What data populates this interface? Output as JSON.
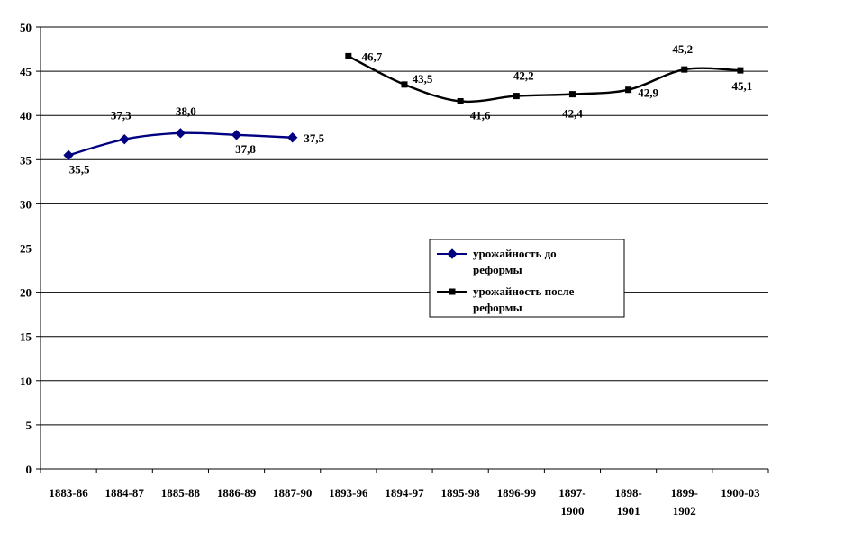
{
  "chart_data": {
    "type": "line",
    "title": "",
    "xlabel": "",
    "ylabel": "",
    "ylim": [
      0,
      50
    ],
    "yticks": [
      0,
      5,
      10,
      15,
      20,
      25,
      30,
      35,
      40,
      45,
      50
    ],
    "grid": true,
    "legend_position": "center-right",
    "categories": [
      "1883-86",
      "1884-87",
      "1885-88",
      "1886-89",
      "1887-90",
      "1893-96",
      "1894-97",
      "1895-98",
      "1896-99",
      "1897-1900",
      "1898-1901",
      "1899-1902",
      "1900-03"
    ],
    "category_lines": [
      [
        "1883-86"
      ],
      [
        "1884-87"
      ],
      [
        "1885-88"
      ],
      [
        "1886-89"
      ],
      [
        "1887-90"
      ],
      [
        "1893-96"
      ],
      [
        "1894-97"
      ],
      [
        "1895-98"
      ],
      [
        "1896-99"
      ],
      [
        "1897-",
        "1900"
      ],
      [
        "1898-",
        "1901"
      ],
      [
        "1899-",
        "1902"
      ],
      [
        "1900-03"
      ]
    ],
    "series": [
      {
        "name": "урожайность до реформы",
        "legend_lines": [
          "урожайность до",
          "реформы"
        ],
        "color": "#000080",
        "marker": "diamond",
        "values": [
          35.5,
          37.3,
          38.0,
          37.8,
          37.5,
          null,
          null,
          null,
          null,
          null,
          null,
          null,
          null
        ],
        "labels": [
          "35,5",
          "37,3",
          "38,0",
          "37,8",
          "37,5",
          null,
          null,
          null,
          null,
          null,
          null,
          null,
          null
        ]
      },
      {
        "name": "урожайность после реформы",
        "legend_lines": [
          "урожайность после",
          "реформы"
        ],
        "color": "#000000",
        "marker": "square",
        "values": [
          null,
          null,
          null,
          null,
          null,
          46.7,
          43.5,
          41.6,
          42.2,
          42.4,
          42.9,
          45.2,
          45.1
        ],
        "labels": [
          null,
          null,
          null,
          null,
          null,
          "46,7",
          "43,5",
          "41,6",
          "42,2",
          "42,4",
          "42,9",
          "45,2",
          "45,1"
        ]
      }
    ]
  }
}
